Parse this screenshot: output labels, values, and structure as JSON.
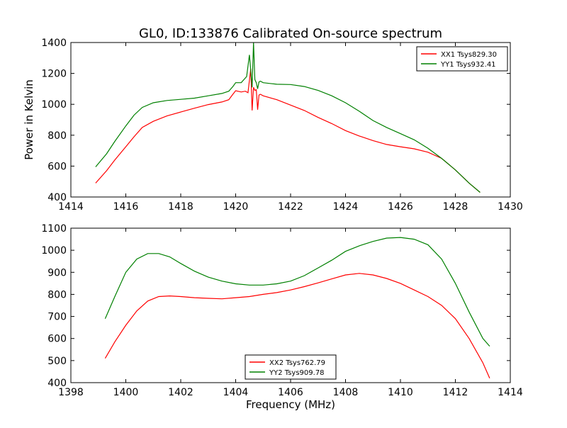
{
  "figure": {
    "title": "GL0, ID:133876 Calibrated On-source spectrum"
  },
  "chart_data": [
    {
      "type": "line",
      "title": "GL0, ID:133876 Calibrated On-source spectrum",
      "xlabel": "",
      "ylabel": "Power in Kelvin",
      "xlim": [
        1414,
        1430
      ],
      "ylim": [
        400,
        1400
      ],
      "xticks": [
        1414,
        1416,
        1418,
        1420,
        1422,
        1424,
        1426,
        1428,
        1430
      ],
      "yticks": [
        400,
        600,
        800,
        1000,
        1200,
        1400
      ],
      "grid": false,
      "legend_position": "top-right",
      "series": [
        {
          "name": "XX1 Tsys829.30",
          "color": "#ff0000",
          "x": [
            1414.9,
            1415.3,
            1415.6,
            1416.0,
            1416.3,
            1416.6,
            1417.0,
            1417.5,
            1418.0,
            1418.5,
            1419.0,
            1419.5,
            1419.75,
            1419.9,
            1420.0,
            1420.2,
            1420.35,
            1420.45,
            1420.55,
            1420.6,
            1420.65,
            1420.7,
            1420.75,
            1420.8,
            1420.85,
            1420.9,
            1421.0,
            1421.5,
            1422.0,
            1422.5,
            1423.0,
            1423.5,
            1424.0,
            1424.5,
            1425.0,
            1425.5,
            1426.0,
            1426.5,
            1427.0,
            1427.5,
            1428.0,
            1428.5,
            1428.9
          ],
          "y": [
            490,
            570,
            640,
            725,
            790,
            850,
            890,
            925,
            950,
            975,
            998,
            1015,
            1030,
            1065,
            1088,
            1080,
            1085,
            1075,
            1230,
            960,
            1110,
            1090,
            1095,
            965,
            1060,
            1065,
            1055,
            1030,
            995,
            960,
            915,
            875,
            830,
            795,
            765,
            740,
            725,
            712,
            690,
            650,
            575,
            490,
            430
          ]
        },
        {
          "name": "YY1 Tsys932.41",
          "color": "#008000",
          "x": [
            1414.9,
            1415.3,
            1415.6,
            1416.0,
            1416.3,
            1416.6,
            1417.0,
            1417.5,
            1418.0,
            1418.5,
            1419.0,
            1419.5,
            1419.75,
            1419.9,
            1420.0,
            1420.2,
            1420.4,
            1420.5,
            1420.55,
            1420.6,
            1420.65,
            1420.7,
            1420.75,
            1420.8,
            1420.85,
            1420.9,
            1421.0,
            1421.5,
            1422.0,
            1422.5,
            1423.0,
            1423.5,
            1424.0,
            1424.5,
            1425.0,
            1425.5,
            1426.0,
            1426.5,
            1427.0,
            1427.5,
            1428.0,
            1428.5,
            1428.9
          ],
          "y": [
            595,
            680,
            760,
            860,
            930,
            980,
            1010,
            1025,
            1032,
            1040,
            1055,
            1070,
            1085,
            1115,
            1140,
            1140,
            1180,
            1320,
            1220,
            1110,
            1400,
            1160,
            1140,
            1100,
            1145,
            1150,
            1140,
            1130,
            1128,
            1115,
            1090,
            1055,
            1010,
            955,
            895,
            850,
            810,
            770,
            715,
            650,
            575,
            490,
            430
          ]
        }
      ]
    },
    {
      "type": "line",
      "title": "",
      "xlabel": "Frequency (MHz)",
      "ylabel": "",
      "xlim": [
        1398,
        1414
      ],
      "ylim": [
        400,
        1100
      ],
      "xticks": [
        1398,
        1400,
        1402,
        1404,
        1406,
        1408,
        1410,
        1412,
        1414
      ],
      "yticks": [
        400,
        500,
        600,
        700,
        800,
        900,
        1000,
        1100
      ],
      "grid": false,
      "legend_position": "bottom-center",
      "series": [
        {
          "name": "XX2 Tsys762.79",
          "color": "#ff0000",
          "x": [
            1399.25,
            1399.6,
            1400.0,
            1400.4,
            1400.8,
            1401.2,
            1401.6,
            1402.0,
            1402.5,
            1403.0,
            1403.5,
            1404.0,
            1404.5,
            1405.0,
            1405.5,
            1406.0,
            1406.5,
            1407.0,
            1407.5,
            1408.0,
            1408.5,
            1409.0,
            1409.5,
            1410.0,
            1410.5,
            1411.0,
            1411.5,
            1412.0,
            1412.5,
            1413.0,
            1413.25
          ],
          "y": [
            510,
            585,
            660,
            725,
            770,
            790,
            793,
            790,
            785,
            782,
            780,
            785,
            790,
            800,
            808,
            820,
            835,
            852,
            870,
            888,
            895,
            888,
            872,
            850,
            820,
            790,
            750,
            690,
            600,
            490,
            420
          ]
        },
        {
          "name": "YY2 Tsys909.78",
          "color": "#008000",
          "x": [
            1399.25,
            1399.6,
            1400.0,
            1400.4,
            1400.8,
            1401.2,
            1401.6,
            1402.0,
            1402.5,
            1403.0,
            1403.5,
            1404.0,
            1404.5,
            1405.0,
            1405.5,
            1406.0,
            1406.5,
            1407.0,
            1407.5,
            1408.0,
            1408.5,
            1409.0,
            1409.5,
            1410.0,
            1410.5,
            1411.0,
            1411.5,
            1412.0,
            1412.5,
            1413.0,
            1413.25
          ],
          "y": [
            690,
            790,
            900,
            960,
            985,
            985,
            970,
            940,
            905,
            878,
            860,
            848,
            842,
            842,
            848,
            860,
            885,
            920,
            955,
            995,
            1020,
            1040,
            1055,
            1058,
            1050,
            1025,
            960,
            850,
            720,
            600,
            565
          ]
        }
      ]
    }
  ]
}
